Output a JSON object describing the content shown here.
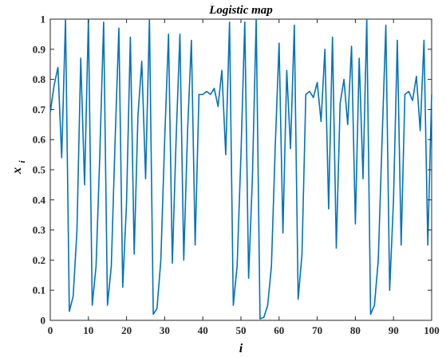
{
  "chart_data": {
    "type": "line",
    "title": "Logistic map",
    "xlabel": "i",
    "ylabel": "x",
    "ylabel_subscript": "i",
    "xlim": [
      0,
      100
    ],
    "ylim": [
      0,
      1
    ],
    "xticks": [
      "0",
      "10",
      "20",
      "30",
      "40",
      "50",
      "60",
      "70",
      "80",
      "90",
      "100"
    ],
    "yticks": [
      "0",
      "0.1",
      "0.2",
      "0.3",
      "0.4",
      "0.5",
      "0.6",
      "0.7",
      "0.8",
      "0.9",
      "1"
    ],
    "grid": false,
    "line_color": "#0072BD",
    "series": [
      {
        "x": [
          0,
          1,
          2,
          3,
          4,
          5,
          6,
          7,
          8,
          9,
          10,
          11,
          12,
          13,
          14,
          15,
          16,
          17,
          18,
          19,
          20,
          21,
          22,
          23,
          24,
          25,
          26,
          27,
          28,
          29,
          30,
          31,
          32,
          33,
          34,
          35,
          36,
          37,
          38,
          39,
          40,
          41,
          42,
          43,
          44,
          45,
          46,
          47,
          48,
          49,
          50,
          51,
          52,
          53,
          54,
          55,
          56,
          57,
          58,
          59,
          60,
          61,
          62,
          63,
          64,
          65,
          66,
          67,
          68,
          69,
          70,
          71,
          72,
          73,
          74,
          75,
          76,
          77,
          78,
          79,
          80,
          81,
          82,
          83,
          84,
          85,
          86,
          87,
          88,
          89,
          90,
          91,
          92,
          93,
          94,
          95,
          96,
          97,
          98,
          99,
          100
        ],
        "values": [
          0.69,
          0.78,
          0.84,
          0.54,
          1.0,
          0.03,
          0.08,
          0.3,
          0.87,
          0.45,
          1.0,
          0.05,
          0.18,
          0.55,
          0.99,
          0.05,
          0.18,
          0.6,
          0.97,
          0.11,
          0.39,
          0.94,
          0.22,
          0.68,
          0.86,
          0.47,
          1.0,
          0.02,
          0.04,
          0.2,
          0.6,
          0.95,
          0.19,
          0.6,
          0.95,
          0.2,
          0.63,
          0.93,
          0.25,
          0.75,
          0.75,
          0.76,
          0.75,
          0.77,
          0.71,
          0.83,
          0.55,
          0.99,
          0.05,
          0.18,
          0.55,
          0.99,
          0.14,
          0.47,
          1.0,
          0.005,
          0.01,
          0.05,
          0.18,
          0.58,
          0.92,
          0.29,
          0.83,
          0.57,
          0.98,
          0.07,
          0.22,
          0.75,
          0.76,
          0.74,
          0.79,
          0.66,
          0.9,
          0.37,
          0.94,
          0.24,
          0.72,
          0.8,
          0.65,
          0.91,
          0.32,
          0.87,
          0.47,
          1.0,
          0.02,
          0.05,
          0.2,
          0.6,
          0.98,
          0.1,
          0.4,
          0.93,
          0.25,
          0.75,
          0.76,
          0.73,
          0.81,
          0.63,
          0.93,
          0.25,
          0.75
        ]
      }
    ]
  }
}
